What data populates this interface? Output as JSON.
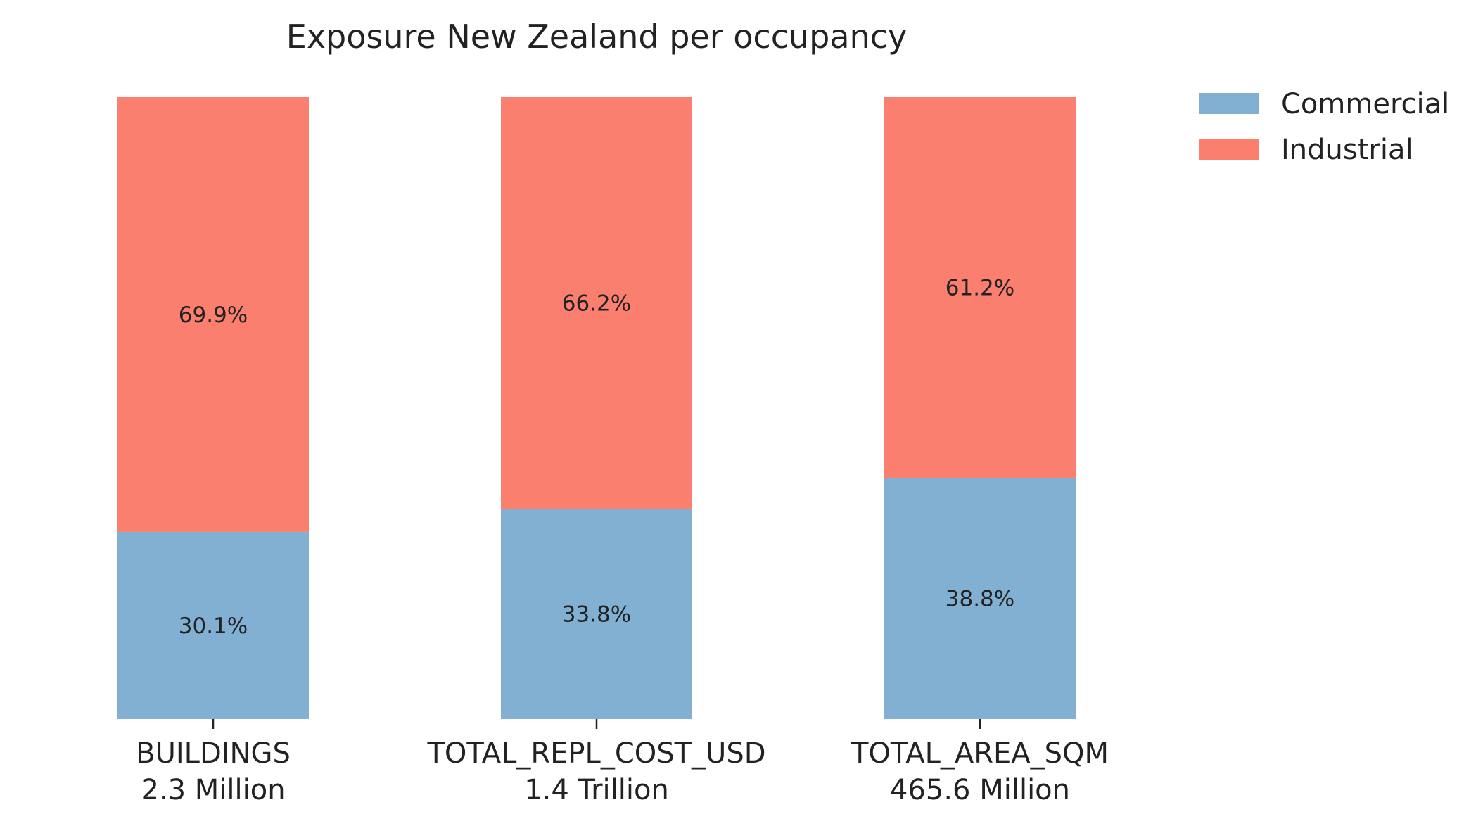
{
  "chart_data": {
    "type": "bar",
    "stacked": true,
    "normalized": true,
    "title": "Exposure New Zealand per occupancy",
    "categories": [
      "BUILDINGS",
      "TOTAL_REPL_COST_USD",
      "TOTAL_AREA_SQM"
    ],
    "category_totals": [
      "2.3 Million",
      "1.4 Trillion",
      "465.6 Million"
    ],
    "series": [
      {
        "name": "Commercial",
        "color": "#82b0d2",
        "values": [
          30.1,
          33.8,
          38.8
        ],
        "labels": [
          "30.1%",
          "33.8%",
          "38.8%"
        ]
      },
      {
        "name": "Industrial",
        "color": "#fa7f6f",
        "values": [
          69.9,
          66.2,
          61.2
        ],
        "labels": [
          "69.9%",
          "66.2%",
          "61.2%"
        ]
      }
    ],
    "ylim": [
      0,
      100
    ],
    "xlabel": "",
    "ylabel": "",
    "grid": false,
    "legend_position": "top-right"
  }
}
